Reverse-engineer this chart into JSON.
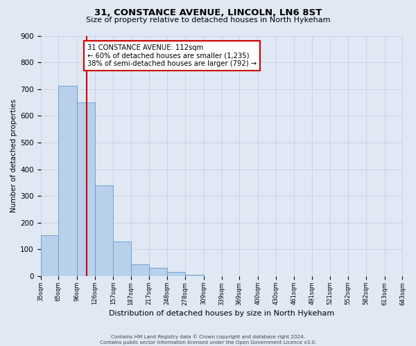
{
  "title_line1": "31, CONSTANCE AVENUE, LINCOLN, LN6 8ST",
  "title_line2": "Size of property relative to detached houses in North Hykeham",
  "xlabel": "Distribution of detached houses by size in North Hykeham",
  "ylabel": "Number of detached properties",
  "bin_edges": [
    35,
    65,
    96,
    126,
    157,
    187,
    217,
    248,
    278,
    309,
    339,
    369,
    400,
    430,
    461,
    491,
    521,
    552,
    582,
    613,
    643
  ],
  "bar_heights": [
    152,
    713,
    651,
    340,
    130,
    43,
    32,
    15,
    5,
    0,
    0,
    0,
    0,
    0,
    0,
    0,
    0,
    0,
    0,
    0
  ],
  "bar_color": "#b8d0ea",
  "bar_edge_color": "#6699cc",
  "vline_x": 112,
  "vline_color": "#cc0000",
  "annotation_text": "31 CONSTANCE AVENUE: 112sqm\n← 60% of detached houses are smaller (1,235)\n38% of semi-detached houses are larger (792) →",
  "annotation_box_color": "#ffffff",
  "annotation_box_edge": "#cc0000",
  "ylim": [
    0,
    900
  ],
  "yticks": [
    0,
    100,
    200,
    300,
    400,
    500,
    600,
    700,
    800,
    900
  ],
  "tick_labels": [
    "35sqm",
    "65sqm",
    "96sqm",
    "126sqm",
    "157sqm",
    "187sqm",
    "217sqm",
    "248sqm",
    "278sqm",
    "309sqm",
    "339sqm",
    "369sqm",
    "400sqm",
    "430sqm",
    "461sqm",
    "491sqm",
    "521sqm",
    "552sqm",
    "582sqm",
    "613sqm",
    "643sqm"
  ],
  "background_color": "#dfe8f3",
  "grid_color": "#c5d0df",
  "footer_line1": "Contains HM Land Registry data © Crown copyright and database right 2024.",
  "footer_line2": "Contains public sector information licensed under the Open Government Licence v3.0.",
  "title1_fontsize": 9.5,
  "title2_fontsize": 8.0,
  "ylabel_fontsize": 7.5,
  "xlabel_fontsize": 8.0,
  "ytick_fontsize": 7.5,
  "xtick_fontsize": 6.0,
  "footer_fontsize": 5.2,
  "annot_fontsize": 7.2
}
